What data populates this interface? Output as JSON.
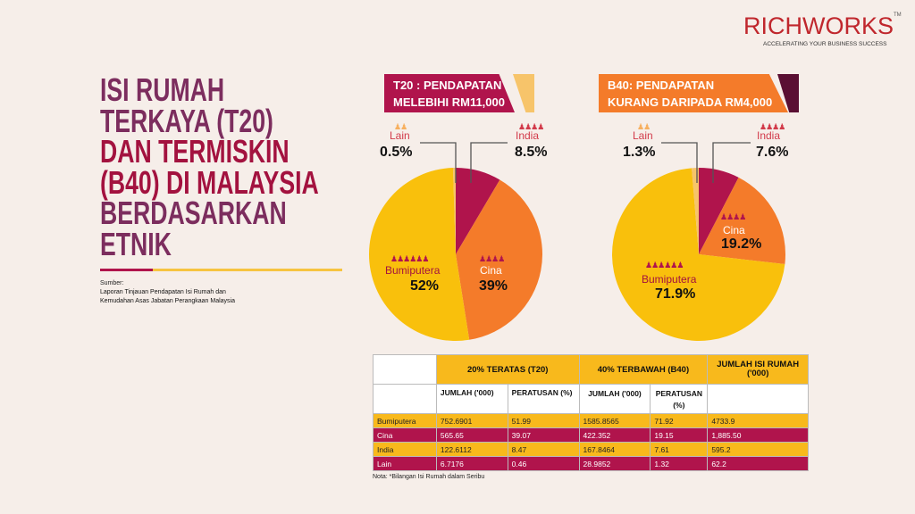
{
  "logo": {
    "name": "RICHWORKS",
    "tm": "TM",
    "tagline": "ACCELERATING YOUR BUSINESS SUCCESS"
  },
  "title": {
    "lines": [
      "ISI RUMAH",
      "TERKAYA (T20)",
      "DAN TERMISKIN",
      "(B40) DI MALAYSIA",
      "BERDASARKAN",
      "ETNIK"
    ]
  },
  "source": {
    "label": "Sumber:",
    "line1": "Laporan Tinjauan Pendapatan Isi Rumah dan",
    "line2": "Kemudahan Asas Jabatan Perangkaan Malaysia"
  },
  "colors": {
    "india": "#b0144c",
    "cina": "#f47b2a",
    "bumiputera": "#f9c00c",
    "lain": "#f7c46a",
    "background": "#f6eee9"
  },
  "chart_data": [
    {
      "type": "pie",
      "title": "T20 : PENDAPATAN",
      "subtitle": "MELEBIHI RM11,000",
      "slices": [
        {
          "label": "India",
          "value": 8.5,
          "text": "8.5%"
        },
        {
          "label": "Cina",
          "value": 39,
          "text": "39%"
        },
        {
          "label": "Bumiputera",
          "value": 52,
          "text": "52%"
        },
        {
          "label": "Lain",
          "value": 0.5,
          "text": "0.5%"
        }
      ]
    },
    {
      "type": "pie",
      "title": "B40: PENDAPATAN",
      "subtitle": "KURANG DARIPADA RM4,000",
      "slices": [
        {
          "label": "India",
          "value": 7.6,
          "text": "7.6%"
        },
        {
          "label": "Cina",
          "value": 19.2,
          "text": "19.2%"
        },
        {
          "label": "Bumiputera",
          "value": 71.9,
          "text": "71.9%"
        },
        {
          "label": "Lain",
          "value": 1.3,
          "text": "1.3%"
        }
      ]
    }
  ],
  "table": {
    "headers": [
      "20% TERATAS (T20)",
      "40% TERBAWAH (B40)",
      "JUMLAH ISI RUMAH ('000)"
    ],
    "subheaders": [
      "JUMLAH ('000)",
      "PERATUSAN (%)",
      "JUMLAH ('000)",
      "PERATUSAN (%)"
    ],
    "rows": [
      [
        "Bumiputera",
        "752.6901",
        "51.99",
        "1585.8565",
        "71.92",
        "4733.9"
      ],
      [
        "Cina",
        "565.65",
        "39.07",
        "422.352",
        "19.15",
        "1,885.50"
      ],
      [
        "India",
        "122.6112",
        "8.47",
        "167.8464",
        "7.61",
        "595.2"
      ],
      [
        "Lain",
        "6.7176",
        "0.46",
        "28.9852",
        "1.32",
        "62.2"
      ]
    ],
    "note": "Nota: *Bilangan Isi Rumah dalam Seribu"
  }
}
